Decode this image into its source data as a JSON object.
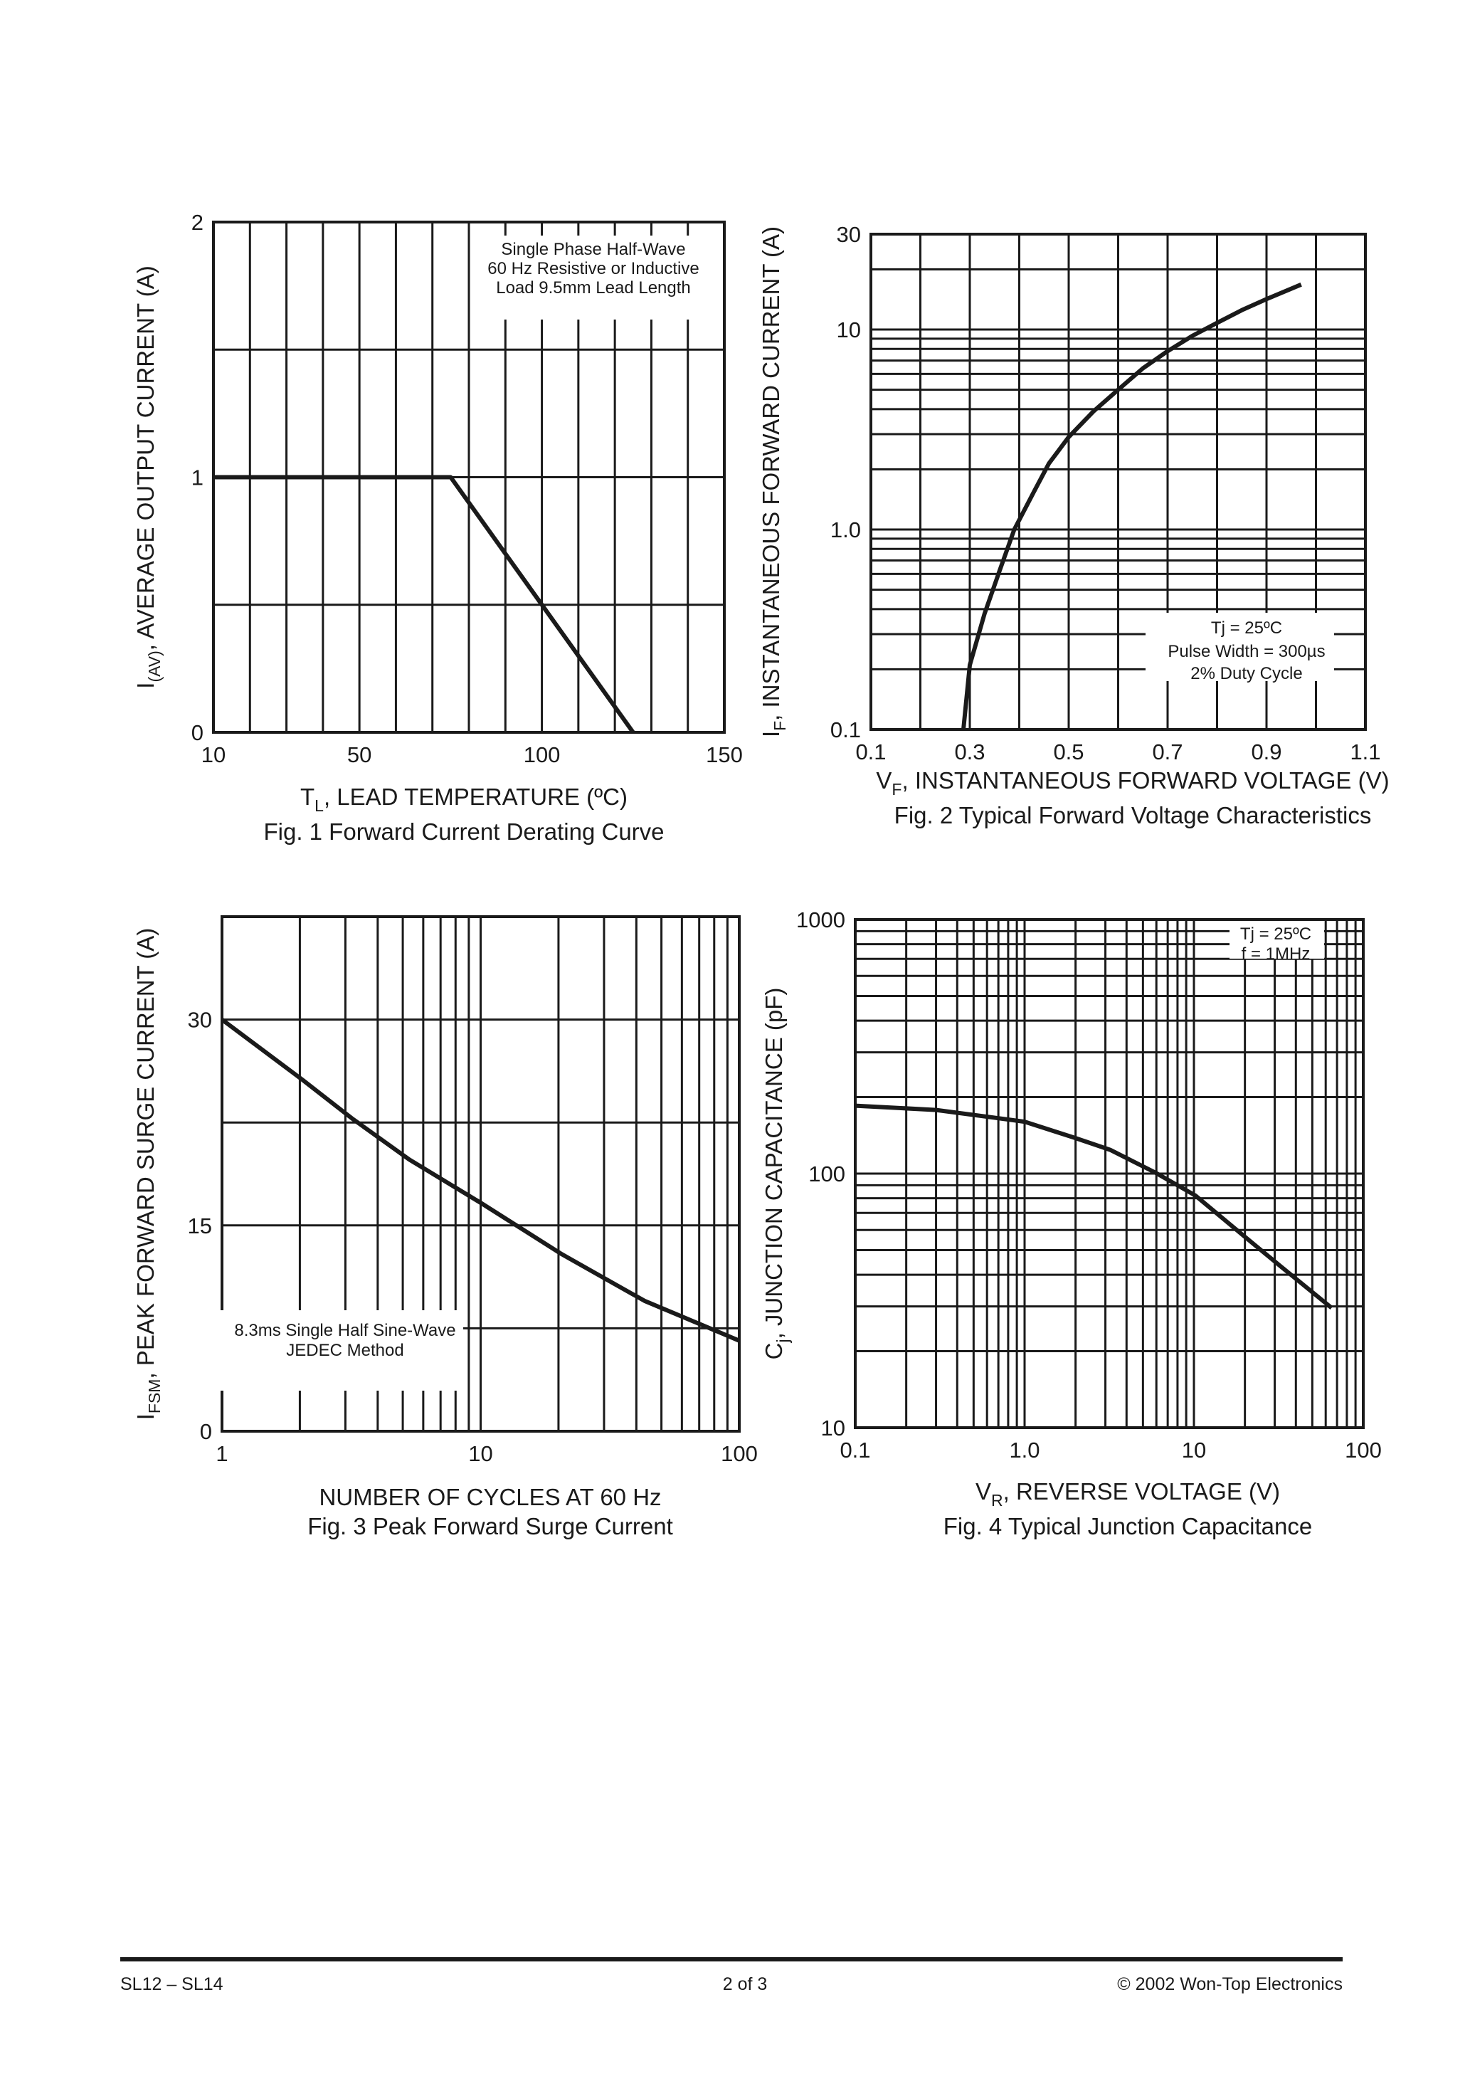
{
  "footer": {
    "left": "SL12 – SL14",
    "center": "2 of 3",
    "right": "© 2002 Won-Top Electronics"
  },
  "colors": {
    "ink": "#1a1a1a",
    "background": "#ffffff"
  },
  "chart_data": [
    {
      "type": "line",
      "title": "Fig. 1  Forward Current Derating Curve",
      "xlabel": {
        "main": "T",
        "sub": "L",
        "rest": ", LEAD TEMPERATURE (ºC)"
      },
      "ylabel": {
        "main": "I",
        "sub": "(AV)",
        "rest": ", AVERAGE OUTPUT CURRENT (A)"
      },
      "x_scale": "linear",
      "y_scale": "linear",
      "xlim": [
        10,
        150
      ],
      "ylim": [
        0,
        2
      ],
      "xgrid": [
        10,
        20,
        30,
        40,
        50,
        60,
        70,
        80,
        90,
        100,
        110,
        120,
        130,
        140,
        150
      ],
      "ygrid": [
        0,
        0.5,
        1,
        1.5,
        2
      ],
      "xticks": [
        {
          "v": 10,
          "label": "10"
        },
        {
          "v": 50,
          "label": "50"
        },
        {
          "v": 100,
          "label": "100"
        },
        {
          "v": 150,
          "label": "150"
        }
      ],
      "yticks": [
        {
          "v": 0,
          "label": "0"
        },
        {
          "v": 1,
          "label": "1"
        },
        {
          "v": 2,
          "label": "2"
        }
      ],
      "grid": true,
      "annotation": [
        "Single Phase Half-Wave",
        "60 Hz Resistive or Inductive",
        "Load 9.5mm Lead Length"
      ],
      "series": [
        {
          "x": [
            10,
            75,
            125
          ],
          "y": [
            1,
            1,
            0
          ]
        }
      ]
    },
    {
      "type": "line",
      "title": "Fig. 2  Typical Forward Voltage Characteristics",
      "xlabel": {
        "main": "V",
        "sub": "F",
        "rest": ", INSTANTANEOUS FORWARD VOLTAGE (V)"
      },
      "ylabel": {
        "main": "I",
        "sub": "F",
        "rest": ", INSTANTANEOUS FORWARD CURRENT (A)"
      },
      "x_scale": "linear",
      "y_scale": "log",
      "xlim": [
        0.1,
        1.1
      ],
      "ylim": [
        0.1,
        30
      ],
      "xgrid": [
        0.1,
        0.2,
        0.3,
        0.4,
        0.5,
        0.6,
        0.7,
        0.8,
        0.9,
        1.0,
        1.1
      ],
      "ygrid": [
        0.1,
        0.2,
        0.3,
        0.4,
        0.5,
        0.6,
        0.7,
        0.8,
        0.9,
        1,
        2,
        3,
        4,
        5,
        6,
        7,
        8,
        9,
        10,
        20,
        30
      ],
      "xticks": [
        {
          "v": 0.1,
          "label": "0.1"
        },
        {
          "v": 0.3,
          "label": "0.3"
        },
        {
          "v": 0.5,
          "label": "0.5"
        },
        {
          "v": 0.7,
          "label": "0.7"
        },
        {
          "v": 0.9,
          "label": "0.9"
        },
        {
          "v": 1.1,
          "label": "1.1"
        }
      ],
      "yticks": [
        {
          "v": 0.1,
          "label": "0.1"
        },
        {
          "v": 1,
          "label": "1.0"
        },
        {
          "v": 10,
          "label": "10"
        },
        {
          "v": 30,
          "label": "30"
        }
      ],
      "grid": true,
      "annotation": [
        "Tj =  25ºC",
        "Pulse Width =  300µs",
        "2% Duty Cycle"
      ],
      "series": [
        {
          "x": [
            0.287,
            0.3,
            0.33,
            0.36,
            0.39,
            0.43,
            0.46,
            0.5,
            0.55,
            0.6,
            0.65,
            0.7,
            0.75,
            0.8,
            0.85,
            0.9,
            0.97
          ],
          "y": [
            0.1,
            0.21,
            0.38,
            0.62,
            1.0,
            1.55,
            2.14,
            2.9,
            3.9,
            5.0,
            6.4,
            7.8,
            9.3,
            10.8,
            12.5,
            14.2,
            16.8
          ]
        }
      ]
    },
    {
      "type": "line",
      "title": "Fig. 3  Peak Forward Surge Current",
      "xlabel": {
        "main": "NUMBER OF CYCLES AT 60 Hz",
        "sub": "",
        "rest": ""
      },
      "ylabel": {
        "main": "I",
        "sub": "FSM",
        "rest": ", PEAK FORWARD SURGE CURRENT (A)"
      },
      "x_scale": "log",
      "y_scale": "linear",
      "xlim": [
        1,
        100
      ],
      "ylim": [
        0,
        37.5
      ],
      "xgrid": [
        1,
        2,
        3,
        4,
        5,
        6,
        7,
        8,
        9,
        10,
        20,
        30,
        40,
        50,
        60,
        70,
        80,
        90,
        100
      ],
      "ygrid": [
        0,
        7.5,
        15,
        22.5,
        30,
        37.5
      ],
      "xticks": [
        {
          "v": 1,
          "label": "1"
        },
        {
          "v": 10,
          "label": "10"
        },
        {
          "v": 100,
          "label": "100"
        }
      ],
      "yticks": [
        {
          "v": 0,
          "label": "0"
        },
        {
          "v": 15,
          "label": "15"
        },
        {
          "v": 30,
          "label": "30"
        }
      ],
      "grid": true,
      "annotation": [
        "8.3ms Single Half Sine-Wave",
        "JEDEC Method"
      ],
      "series": [
        {
          "x": [
            1,
            2.05,
            3.18,
            5.3,
            10.1,
            20.6,
            43,
            100
          ],
          "y": [
            30,
            25.6,
            22.8,
            19.8,
            16.6,
            12.9,
            9.5,
            6.6
          ]
        }
      ]
    },
    {
      "type": "line",
      "title": "Fig. 4  Typical  Junction Capacitance",
      "xlabel": {
        "main": "V",
        "sub": "R",
        "rest": ", REVERSE VOLTAGE (V)"
      },
      "ylabel": {
        "main": "C",
        "sub": "j",
        "rest": ", JUNCTION CAPACITANCE (pF)"
      },
      "x_scale": "log",
      "y_scale": "log",
      "xlim": [
        0.1,
        100
      ],
      "ylim": [
        10,
        1000
      ],
      "xgrid": [
        0.1,
        0.2,
        0.3,
        0.4,
        0.5,
        0.6,
        0.7,
        0.8,
        0.9,
        1,
        2,
        3,
        4,
        5,
        6,
        7,
        8,
        9,
        10,
        20,
        30,
        40,
        50,
        60,
        70,
        80,
        90,
        100
      ],
      "ygrid": [
        10,
        20,
        30,
        40,
        50,
        60,
        70,
        80,
        90,
        100,
        200,
        300,
        400,
        500,
        600,
        700,
        800,
        900,
        1000
      ],
      "xticks": [
        {
          "v": 0.1,
          "label": "0.1"
        },
        {
          "v": 1,
          "label": "1.0"
        },
        {
          "v": 10,
          "label": "10"
        },
        {
          "v": 100,
          "label": "100"
        }
      ],
      "yticks": [
        {
          "v": 10,
          "label": "10"
        },
        {
          "v": 100,
          "label": "100"
        },
        {
          "v": 1000,
          "label": "1000"
        }
      ],
      "grid": true,
      "annotation": [
        "Tj =  25ºC",
        "f =  1MHz"
      ],
      "series": [
        {
          "x": [
            0.1,
            0.3,
            1.0,
            2.0,
            3.2,
            5.9,
            10.2,
            20,
            33,
            65
          ],
          "y": [
            185,
            178,
            160,
            138,
            124,
            101,
            82,
            56.4,
            42.8,
            29.6
          ]
        }
      ]
    }
  ]
}
